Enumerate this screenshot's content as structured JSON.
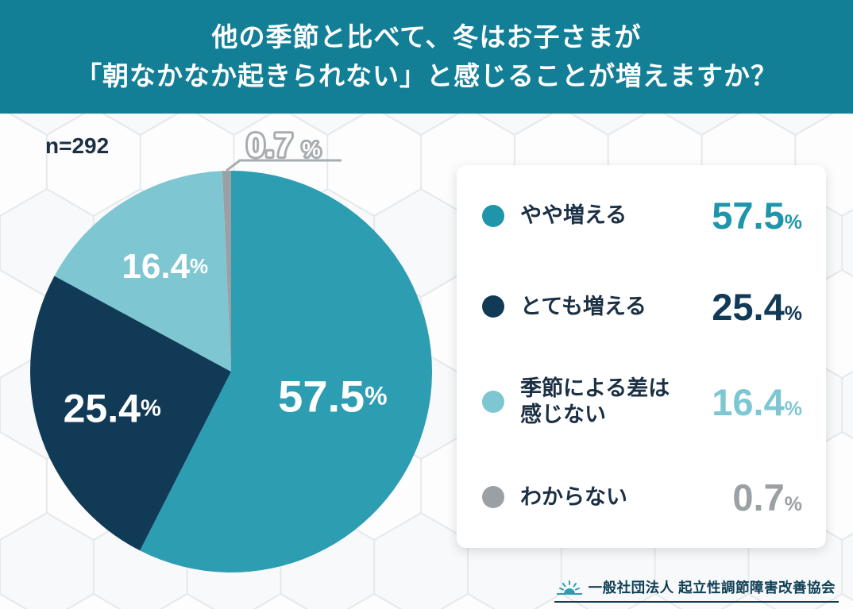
{
  "header": {
    "line1": "他の季節と比べて、冬はお子さまが",
    "line2": "「朝なかなか起きられない」と感じることが増えますか？",
    "bg_color": "#137f97"
  },
  "chart": {
    "n_label": "n=292"
  },
  "chart_data": {
    "type": "pie",
    "title": "他の季節と比べて、冬はお子さまが「朝なかなか起きられない」と感じることが増えますか？",
    "n": 292,
    "unit": "%",
    "start_angle_deg": 0,
    "direction": "clockwise",
    "legend_position": "right",
    "series": [
      {
        "label": "やや増える",
        "value": 57.5,
        "color": "#2d9db2",
        "pie_label_size": 56,
        "label_radius_frac": 0.52
      },
      {
        "label": "とても増える",
        "value": 25.4,
        "color": "#113a57",
        "pie_label_size": 50,
        "label_radius_frac": 0.62
      },
      {
        "label": "季節による差は感じない",
        "value": 16.4,
        "color": "#7ec7d2",
        "pie_label_size": 44,
        "label_radius_frac": 0.62
      },
      {
        "label": "わからない",
        "value": 0.7,
        "color": "#9aa0a4",
        "pie_label_size": 0,
        "label_radius_frac": 0
      }
    ],
    "callout": {
      "text": "0.7",
      "unit": "%",
      "color": "#a8adb1"
    }
  },
  "legend": {
    "items": [
      {
        "label": "やや増える",
        "value": "57.5",
        "unit": "%",
        "color": "#1e95ab"
      },
      {
        "label": "とても増える",
        "value": "25.4",
        "unit": "%",
        "color": "#113a57"
      },
      {
        "label": "季節による差は\n感じない",
        "value": "16.4",
        "unit": "%",
        "color": "#7ec7d2"
      },
      {
        "label": "わからない",
        "value": "0.7",
        "unit": "%",
        "color": "#9aa0a4"
      }
    ]
  },
  "footer": {
    "org": "一般社団法人 起立性調節障害改善協会"
  }
}
